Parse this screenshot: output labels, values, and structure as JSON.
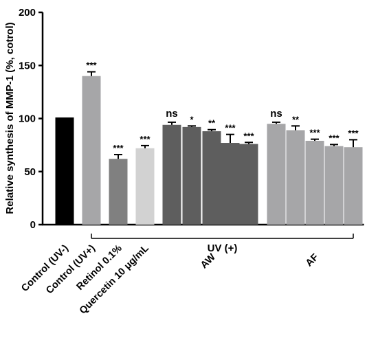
{
  "chart_data": {
    "type": "bar",
    "ylabel": "Relative synthesis of MMP-1 (%, cotrol)",
    "ylim": [
      0,
      200
    ],
    "yticks": [
      0,
      50,
      100,
      150,
      200
    ],
    "grid": false,
    "legend": "none",
    "categories": [
      "Control (UV-)",
      "Control (UV+)",
      "Retinol 0.1%",
      "Quercetin 10 μg/mL",
      "",
      "",
      "AW",
      "",
      "",
      "",
      "",
      "AF",
      "",
      ""
    ],
    "values": [
      101,
      140,
      62,
      72,
      94,
      92,
      88,
      77,
      76,
      95,
      89,
      79,
      74,
      73
    ],
    "errors": [
      0,
      4,
      4,
      2.5,
      2.5,
      1,
      1.5,
      8,
      1.5,
      1.5,
      4,
      1.5,
      1.5,
      7
    ],
    "significance": [
      "",
      "***",
      "***",
      "***",
      "ns",
      "*",
      "**",
      "***",
      "***",
      "ns",
      "**",
      "***",
      "***",
      "***"
    ],
    "colors": [
      "#000000",
      "#a6a6a8",
      "#808080",
      "#d2d2d2",
      "#5e5e5e",
      "#5e5e5e",
      "#5e5e5e",
      "#5e5e5e",
      "#5e5e5e",
      "#a6a6a8",
      "#a6a6a8",
      "#a6a6a8",
      "#a6a6a8",
      "#a6a6a8"
    ],
    "bracket_label": "UV (+)",
    "bracket_from_index": 1,
    "bracket_to_index": 13
  }
}
